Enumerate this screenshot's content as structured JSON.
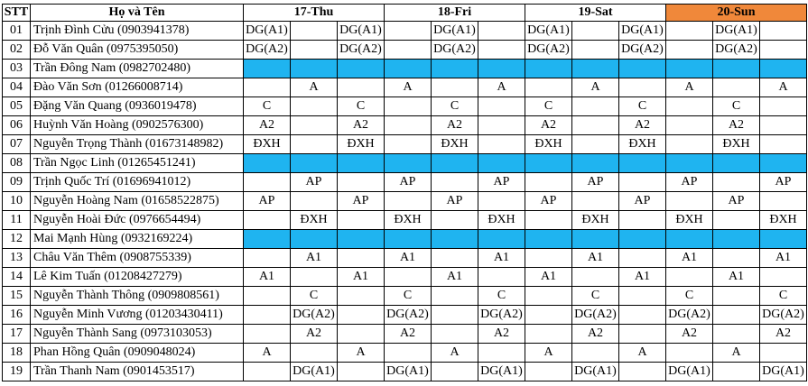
{
  "header": {
    "stt": "STT",
    "name": "Họ và Tên",
    "days": [
      "17-Thu",
      "18-Fri",
      "19-Sat",
      "20-Sun"
    ]
  },
  "rows": [
    {
      "stt": "01",
      "name": "Trịnh Đình Cửu (0903941378)",
      "cells": [
        "DG(A1)",
        "",
        "DG(A1)",
        "",
        "DG(A1)",
        "",
        "DG(A1)",
        "",
        "DG(A1)",
        "",
        "DG(A1)",
        ""
      ],
      "blue": false
    },
    {
      "stt": "02",
      "name": "Đỗ Văn Quân (0975395050)",
      "cells": [
        "DG(A2)",
        "",
        "DG(A2)",
        "",
        "DG(A2)",
        "",
        "DG(A2)",
        "",
        "DG(A2)",
        "",
        "DG(A2)",
        ""
      ],
      "blue": false
    },
    {
      "stt": "03",
      "name": "Trần Đông Nam (0982702480)",
      "cells": [
        "",
        "",
        "",
        "",
        "",
        "",
        "",
        "",
        "",
        "",
        "",
        ""
      ],
      "blue": true
    },
    {
      "stt": "04",
      "name": "Đào Văn Sơn (01266008714)",
      "cells": [
        "",
        "A",
        "",
        "A",
        "",
        "A",
        "",
        "A",
        "",
        "A",
        "",
        "A"
      ],
      "blue": false
    },
    {
      "stt": "05",
      "name": "Đặng Văn Quang (0936019478)",
      "cells": [
        "C",
        "",
        "C",
        "",
        "C",
        "",
        "C",
        "",
        "C",
        "",
        "C",
        ""
      ],
      "blue": false
    },
    {
      "stt": "06",
      "name": "Huỳnh Văn Hoàng (0902576300)",
      "cells": [
        "A2",
        "",
        "A2",
        "",
        "A2",
        "",
        "A2",
        "",
        "A2",
        "",
        "A2",
        ""
      ],
      "blue": false
    },
    {
      "stt": "07",
      "name": "Nguyễn Trọng Thành (01673148982)",
      "cells": [
        "ĐXH",
        "",
        "ĐXH",
        "",
        "ĐXH",
        "",
        "ĐXH",
        "",
        "ĐXH",
        "",
        "ĐXH",
        ""
      ],
      "blue": false
    },
    {
      "stt": "08",
      "name": "Trần Ngọc Linh (01265451241)",
      "cells": [
        "",
        "",
        "",
        "",
        "",
        "",
        "",
        "",
        "",
        "",
        "",
        ""
      ],
      "blue": true
    },
    {
      "stt": "09",
      "name": "Trịnh Quốc Trí (01696941012)",
      "cells": [
        "",
        "AP",
        "",
        "AP",
        "",
        "AP",
        "",
        "AP",
        "",
        "AP",
        "",
        "AP"
      ],
      "blue": false
    },
    {
      "stt": "10",
      "name": "Nguyễn Hoàng Nam (01658522875)",
      "cells": [
        "AP",
        "",
        "AP",
        "",
        "AP",
        "",
        "AP",
        "",
        "AP",
        "",
        "AP",
        ""
      ],
      "blue": false
    },
    {
      "stt": "11",
      "name": "Nguyễn Hoài Đức (0976654494)",
      "cells": [
        "",
        "ĐXH",
        "",
        "ĐXH",
        "",
        "ĐXH",
        "",
        "ĐXH",
        "",
        "ĐXH",
        "",
        "ĐXH"
      ],
      "blue": false
    },
    {
      "stt": "12",
      "name": "Mai Mạnh Hùng (0932169224)",
      "cells": [
        "",
        "",
        "",
        "",
        "",
        "",
        "",
        "",
        "",
        "",
        "",
        ""
      ],
      "blue": true
    },
    {
      "stt": "13",
      "name": "Châu Văn Thêm (0908755339)",
      "cells": [
        "",
        "A1",
        "",
        "A1",
        "",
        "A1",
        "",
        "A1",
        "",
        "A1",
        "",
        "A1"
      ],
      "blue": false
    },
    {
      "stt": "14",
      "name": "Lê Kim Tuấn (01208427279)",
      "cells": [
        "A1",
        "",
        "A1",
        "",
        "A1",
        "",
        "A1",
        "",
        "A1",
        "",
        "A1",
        ""
      ],
      "blue": false
    },
    {
      "stt": "15",
      "name": "Nguyễn Thành Thông (0909808561)",
      "cells": [
        "",
        "C",
        "",
        "C",
        "",
        "C",
        "",
        "C",
        "",
        "C",
        "",
        "C"
      ],
      "blue": false
    },
    {
      "stt": "16",
      "name": "Nguyễn Minh Vương (01203430411)",
      "cells": [
        "",
        "DG(A2)",
        "",
        "DG(A2)",
        "",
        "DG(A2)",
        "",
        "DG(A2)",
        "",
        "DG(A2)",
        "",
        "DG(A2)"
      ],
      "blue": false
    },
    {
      "stt": "17",
      "name": "Nguyễn Thành Sang (0973103053)",
      "cells": [
        "",
        "A2",
        "",
        "A2",
        "",
        "A2",
        "",
        "A2",
        "",
        "A2",
        "",
        "A2"
      ],
      "blue": false
    },
    {
      "stt": "18",
      "name": "Phan Hồng Quân (0909048024)",
      "cells": [
        "A",
        "",
        "A",
        "",
        "A",
        "",
        "A",
        "",
        "A",
        "",
        "A",
        ""
      ],
      "blue": false
    },
    {
      "stt": "19",
      "name": "Trần Thanh Nam (0901453517)",
      "cells": [
        "",
        "DG(A1)",
        "",
        "DG(A1)",
        "",
        "DG(A1)",
        "",
        "DG(A1)",
        "",
        "DG(A1)",
        "",
        "DG(A1)"
      ],
      "blue": false
    }
  ],
  "colors": {
    "blue": "#1fb4f0",
    "sunday": "#f0883a"
  }
}
